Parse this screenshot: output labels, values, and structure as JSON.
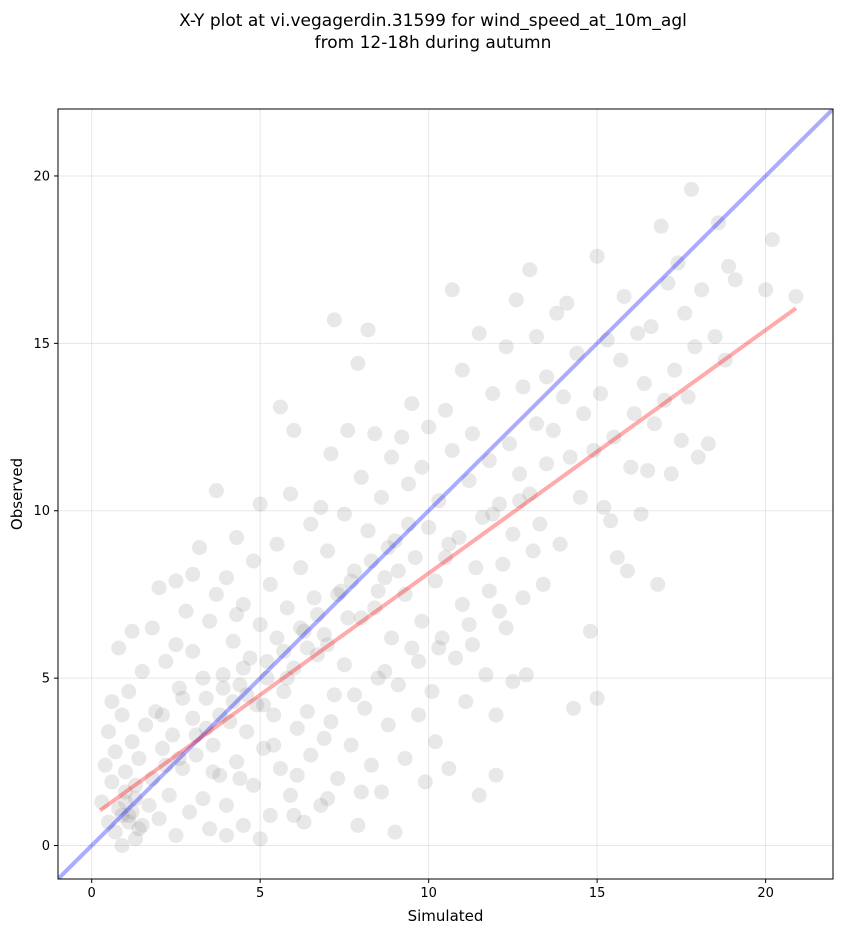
{
  "chart_data": {
    "type": "scatter",
    "title_lines": [
      "X-Y plot at vi.vegagerdin.31599 for wind_speed_at_10m_agl",
      "from 12-18h during autumn"
    ],
    "xlabel": "Simulated",
    "ylabel": "Observed",
    "xlim": [
      -1,
      22
    ],
    "ylim": [
      -1,
      22
    ],
    "xticks": [
      0,
      5,
      10,
      15,
      20
    ],
    "yticks": [
      0,
      5,
      10,
      15,
      20
    ],
    "grid": true,
    "point_color": "#808080",
    "point_alpha": 0.18,
    "identity_line": {
      "x": [
        -1,
        22
      ],
      "y": [
        -1,
        22
      ],
      "color": "#0000ff",
      "alpha": 0.33
    },
    "fit_line": {
      "x": [
        0.25,
        20.9
      ],
      "y": [
        1.05,
        16.05
      ],
      "color": "#ff0000",
      "alpha": 0.33
    },
    "points": [
      [
        0.3,
        1.3
      ],
      [
        0.4,
        2.4
      ],
      [
        0.5,
        0.7
      ],
      [
        0.5,
        3.4
      ],
      [
        0.6,
        1.9
      ],
      [
        0.6,
        4.3
      ],
      [
        0.7,
        0.4
      ],
      [
        0.7,
        2.8
      ],
      [
        0.8,
        1.1
      ],
      [
        0.8,
        5.9
      ],
      [
        0.9,
        0.0
      ],
      [
        0.9,
        3.9
      ],
      [
        1.0,
        1.6
      ],
      [
        1.0,
        2.2
      ],
      [
        1.1,
        0.9
      ],
      [
        1.1,
        4.6
      ],
      [
        1.2,
        6.4
      ],
      [
        1.2,
        3.1
      ],
      [
        1.3,
        0.2
      ],
      [
        1.3,
        1.8
      ],
      [
        1.4,
        2.6
      ],
      [
        1.5,
        5.2
      ],
      [
        1.5,
        0.6
      ],
      [
        1.6,
        3.6
      ],
      [
        1.7,
        1.2
      ],
      [
        1.8,
        6.5
      ],
      [
        1.8,
        2.0
      ],
      [
        1.9,
        4.0
      ],
      [
        2.0,
        0.8
      ],
      [
        2.0,
        7.7
      ],
      [
        2.1,
        2.9
      ],
      [
        2.2,
        5.5
      ],
      [
        2.3,
        1.5
      ],
      [
        2.4,
        3.3
      ],
      [
        2.5,
        6.0
      ],
      [
        2.5,
        0.3
      ],
      [
        2.6,
        4.7
      ],
      [
        2.7,
        2.3
      ],
      [
        2.8,
        7.0
      ],
      [
        2.9,
        1.0
      ],
      [
        3.0,
        3.8
      ],
      [
        3.0,
        5.8
      ],
      [
        3.1,
        2.7
      ],
      [
        3.2,
        8.9
      ],
      [
        3.3,
        1.4
      ],
      [
        3.4,
        4.4
      ],
      [
        3.5,
        6.7
      ],
      [
        3.5,
        0.5
      ],
      [
        3.6,
        3.0
      ],
      [
        3.7,
        7.5
      ],
      [
        3.7,
        10.6
      ],
      [
        3.8,
        2.1
      ],
      [
        3.9,
        5.1
      ],
      [
        4.0,
        8.0
      ],
      [
        4.0,
        1.2
      ],
      [
        4.1,
        3.7
      ],
      [
        4.2,
        6.1
      ],
      [
        4.3,
        9.2
      ],
      [
        4.3,
        2.5
      ],
      [
        4.4,
        4.8
      ],
      [
        4.5,
        7.2
      ],
      [
        4.5,
        0.6
      ],
      [
        4.6,
        3.4
      ],
      [
        4.7,
        5.6
      ],
      [
        4.8,
        8.5
      ],
      [
        4.8,
        1.8
      ],
      [
        4.9,
        4.2
      ],
      [
        5.0,
        6.6
      ],
      [
        5.0,
        10.2
      ],
      [
        5.1,
        2.9
      ],
      [
        5.2,
        5.0
      ],
      [
        5.3,
        7.8
      ],
      [
        5.3,
        0.9
      ],
      [
        5.4,
        3.9
      ],
      [
        5.5,
        9.0
      ],
      [
        5.5,
        6.2
      ],
      [
        5.6,
        13.1
      ],
      [
        5.6,
        2.3
      ],
      [
        5.7,
        4.6
      ],
      [
        5.8,
        7.1
      ],
      [
        5.9,
        10.5
      ],
      [
        5.9,
        1.5
      ],
      [
        6.0,
        5.3
      ],
      [
        6.0,
        12.4
      ],
      [
        6.1,
        3.5
      ],
      [
        6.2,
        8.3
      ],
      [
        6.2,
        6.5
      ],
      [
        6.3,
        0.7
      ],
      [
        6.4,
        4.0
      ],
      [
        6.5,
        9.6
      ],
      [
        6.5,
        2.7
      ],
      [
        6.6,
        7.4
      ],
      [
        6.7,
        5.7
      ],
      [
        6.8,
        10.1
      ],
      [
        6.8,
        1.2
      ],
      [
        6.9,
        3.2
      ],
      [
        7.0,
        8.8
      ],
      [
        7.0,
        6.0
      ],
      [
        7.1,
        11.7
      ],
      [
        7.2,
        4.5
      ],
      [
        7.2,
        15.7
      ],
      [
        7.3,
        2.0
      ],
      [
        7.4,
        7.6
      ],
      [
        7.5,
        9.9
      ],
      [
        7.5,
        5.4
      ],
      [
        7.6,
        12.4
      ],
      [
        7.7,
        3.0
      ],
      [
        7.8,
        8.2
      ],
      [
        7.9,
        14.4
      ],
      [
        7.9,
        0.6
      ],
      [
        8.0,
        6.8
      ],
      [
        8.0,
        11.0
      ],
      [
        8.1,
        4.1
      ],
      [
        8.2,
        9.4
      ],
      [
        8.2,
        15.4
      ],
      [
        8.3,
        2.4
      ],
      [
        8.4,
        7.1
      ],
      [
        8.4,
        12.3
      ],
      [
        8.5,
        5.0
      ],
      [
        8.6,
        10.4
      ],
      [
        8.6,
        1.6
      ],
      [
        8.7,
        8.0
      ],
      [
        8.8,
        3.6
      ],
      [
        8.9,
        11.6
      ],
      [
        8.9,
        6.2
      ],
      [
        9.0,
        9.1
      ],
      [
        9.0,
        0.4
      ],
      [
        9.1,
        4.8
      ],
      [
        9.2,
        12.2
      ],
      [
        9.3,
        7.5
      ],
      [
        9.3,
        2.6
      ],
      [
        9.4,
        10.8
      ],
      [
        9.5,
        5.9
      ],
      [
        9.5,
        13.2
      ],
      [
        9.6,
        8.6
      ],
      [
        9.7,
        3.9
      ],
      [
        9.8,
        11.3
      ],
      [
        9.8,
        6.7
      ],
      [
        9.9,
        1.9
      ],
      [
        10.0,
        9.5
      ],
      [
        10.0,
        12.5
      ],
      [
        10.1,
        4.6
      ],
      [
        10.2,
        7.9
      ],
      [
        10.2,
        3.1
      ],
      [
        10.3,
        10.3
      ],
      [
        10.4,
        6.2
      ],
      [
        10.5,
        13.0
      ],
      [
        10.5,
        8.6
      ],
      [
        10.6,
        2.3
      ],
      [
        10.7,
        11.8
      ],
      [
        10.7,
        16.6
      ],
      [
        10.8,
        5.6
      ],
      [
        10.9,
        9.2
      ],
      [
        11.0,
        7.2
      ],
      [
        11.0,
        14.2
      ],
      [
        11.1,
        4.3
      ],
      [
        11.2,
        10.9
      ],
      [
        11.3,
        12.3
      ],
      [
        11.3,
        6.0
      ],
      [
        11.4,
        8.3
      ],
      [
        11.5,
        1.5
      ],
      [
        11.5,
        15.3
      ],
      [
        11.6,
        9.8
      ],
      [
        11.7,
        5.1
      ],
      [
        11.8,
        11.5
      ],
      [
        11.8,
        7.6
      ],
      [
        11.9,
        13.5
      ],
      [
        12.0,
        3.9
      ],
      [
        12.0,
        2.1
      ],
      [
        12.1,
        10.2
      ],
      [
        12.2,
        8.4
      ],
      [
        12.3,
        14.9
      ],
      [
        12.3,
        6.5
      ],
      [
        12.4,
        12.0
      ],
      [
        12.5,
        4.9
      ],
      [
        12.5,
        9.3
      ],
      [
        12.6,
        16.3
      ],
      [
        12.7,
        11.1
      ],
      [
        12.8,
        7.4
      ],
      [
        12.8,
        13.7
      ],
      [
        12.9,
        5.1
      ],
      [
        13.0,
        17.2
      ],
      [
        13.0,
        10.5
      ],
      [
        13.1,
        8.8
      ],
      [
        13.2,
        15.2
      ],
      [
        13.2,
        12.6
      ],
      [
        13.3,
        9.6
      ],
      [
        13.4,
        7.8
      ],
      [
        13.5,
        14.0
      ],
      [
        13.5,
        11.4
      ],
      [
        13.7,
        12.4
      ],
      [
        13.8,
        15.9
      ],
      [
        13.9,
        9.0
      ],
      [
        14.0,
        13.4
      ],
      [
        14.1,
        16.2
      ],
      [
        14.2,
        11.6
      ],
      [
        14.3,
        4.1
      ],
      [
        14.4,
        14.7
      ],
      [
        14.5,
        10.4
      ],
      [
        14.6,
        12.9
      ],
      [
        14.8,
        6.4
      ],
      [
        14.9,
        11.8
      ],
      [
        15.0,
        17.6
      ],
      [
        15.0,
        4.4
      ],
      [
        15.1,
        13.5
      ],
      [
        15.2,
        10.1
      ],
      [
        15.3,
        15.1
      ],
      [
        15.4,
        9.7
      ],
      [
        15.5,
        12.2
      ],
      [
        15.6,
        8.6
      ],
      [
        15.7,
        14.5
      ],
      [
        15.8,
        16.4
      ],
      [
        15.9,
        8.2
      ],
      [
        16.0,
        11.3
      ],
      [
        16.1,
        12.9
      ],
      [
        16.2,
        15.3
      ],
      [
        16.3,
        9.9
      ],
      [
        16.4,
        13.8
      ],
      [
        16.5,
        11.2
      ],
      [
        16.6,
        15.5
      ],
      [
        16.7,
        12.6
      ],
      [
        16.8,
        7.8
      ],
      [
        16.9,
        18.5
      ],
      [
        17.0,
        13.3
      ],
      [
        17.1,
        16.8
      ],
      [
        17.2,
        11.1
      ],
      [
        17.3,
        14.2
      ],
      [
        17.4,
        17.4
      ],
      [
        17.5,
        12.1
      ],
      [
        17.6,
        15.9
      ],
      [
        17.7,
        13.4
      ],
      [
        17.8,
        19.6
      ],
      [
        17.9,
        14.9
      ],
      [
        18.0,
        11.6
      ],
      [
        18.1,
        16.6
      ],
      [
        18.3,
        12.0
      ],
      [
        18.5,
        15.2
      ],
      [
        18.6,
        18.6
      ],
      [
        18.8,
        14.5
      ],
      [
        18.9,
        17.3
      ],
      [
        19.1,
        16.9
      ],
      [
        20.0,
        16.6
      ],
      [
        20.2,
        18.1
      ],
      [
        20.9,
        16.4
      ],
      [
        0.9,
        0.9
      ],
      [
        1.0,
        1.3
      ],
      [
        1.1,
        0.7
      ],
      [
        1.2,
        1.0
      ],
      [
        1.3,
        1.4
      ],
      [
        1.4,
        0.5
      ],
      [
        2.2,
        2.4
      ],
      [
        2.6,
        2.6
      ],
      [
        3.1,
        3.3
      ],
      [
        3.4,
        3.5
      ],
      [
        3.8,
        3.9
      ],
      [
        4.2,
        4.3
      ],
      [
        4.6,
        4.5
      ],
      [
        5.2,
        5.5
      ],
      [
        5.7,
        5.8
      ],
      [
        6.3,
        6.4
      ],
      [
        6.7,
        6.9
      ],
      [
        7.3,
        7.5
      ],
      [
        7.7,
        7.9
      ],
      [
        8.3,
        8.5
      ],
      [
        8.8,
        8.9
      ],
      [
        9.4,
        9.6
      ],
      [
        3.3,
        5.0
      ],
      [
        3.9,
        4.7
      ],
      [
        4.5,
        5.3
      ],
      [
        5.1,
        4.2
      ],
      [
        5.8,
        5.0
      ],
      [
        6.4,
        5.9
      ],
      [
        6.9,
        6.3
      ],
      [
        7.6,
        6.8
      ],
      [
        8.5,
        7.6
      ],
      [
        9.1,
        8.2
      ],
      [
        10.6,
        9.0
      ],
      [
        11.9,
        9.9
      ],
      [
        12.7,
        10.3
      ],
      [
        2.1,
        3.9
      ],
      [
        2.7,
        4.4
      ],
      [
        3.6,
        2.2
      ],
      [
        4.4,
        2.0
      ],
      [
        5.4,
        3.0
      ],
      [
        6.1,
        2.1
      ],
      [
        7.1,
        3.7
      ],
      [
        7.8,
        4.5
      ],
      [
        8.7,
        5.2
      ],
      [
        9.7,
        5.5
      ],
      [
        10.3,
        5.9
      ],
      [
        11.2,
        6.6
      ],
      [
        12.1,
        7.0
      ],
      [
        4.0,
        0.3
      ],
      [
        5.0,
        0.2
      ],
      [
        6.0,
        0.9
      ],
      [
        7.0,
        1.4
      ],
      [
        8.0,
        1.6
      ],
      [
        2.5,
        7.9
      ],
      [
        3.0,
        8.1
      ],
      [
        4.3,
        6.9
      ]
    ]
  }
}
